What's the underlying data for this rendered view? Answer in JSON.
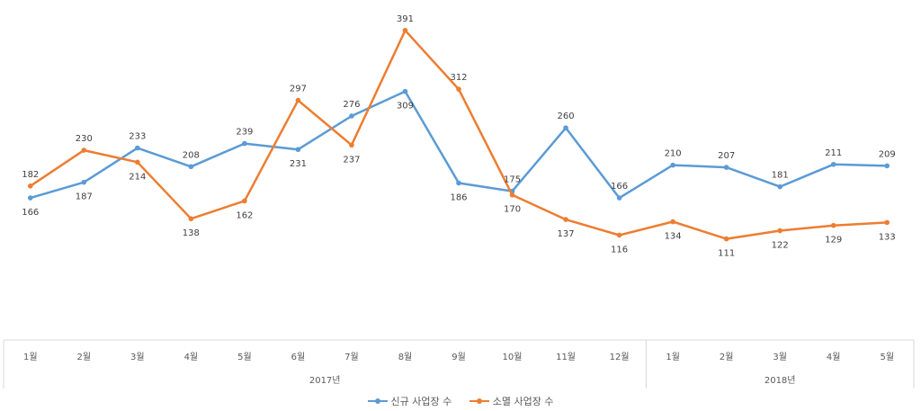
{
  "chart_data": {
    "type": "line",
    "categories": [
      "1월",
      "2월",
      "3월",
      "4월",
      "5월",
      "6월",
      "7월",
      "8월",
      "9월",
      "10월",
      "11월",
      "12월",
      "1월",
      "2월",
      "3월",
      "4월",
      "5월"
    ],
    "year_groups": [
      {
        "label": "2017년",
        "start": 0,
        "end": 11
      },
      {
        "label": "2018년",
        "start": 12,
        "end": 16
      }
    ],
    "series": [
      {
        "name": "신규 사업장 수",
        "color": "#5B9BD5",
        "values": [
          166,
          187,
          233,
          208,
          239,
          231,
          276,
          309,
          186,
          175,
          260,
          166,
          210,
          207,
          181,
          211,
          209
        ]
      },
      {
        "name": "소멸 사업장 수",
        "color": "#ED7D31",
        "values": [
          182,
          230,
          214,
          138,
          162,
          297,
          237,
          391,
          312,
          170,
          137,
          116,
          134,
          111,
          122,
          129,
          133
        ]
      }
    ],
    "ylim": [
      0,
      420
    ],
    "grid": false,
    "legend_position": "bottom"
  }
}
